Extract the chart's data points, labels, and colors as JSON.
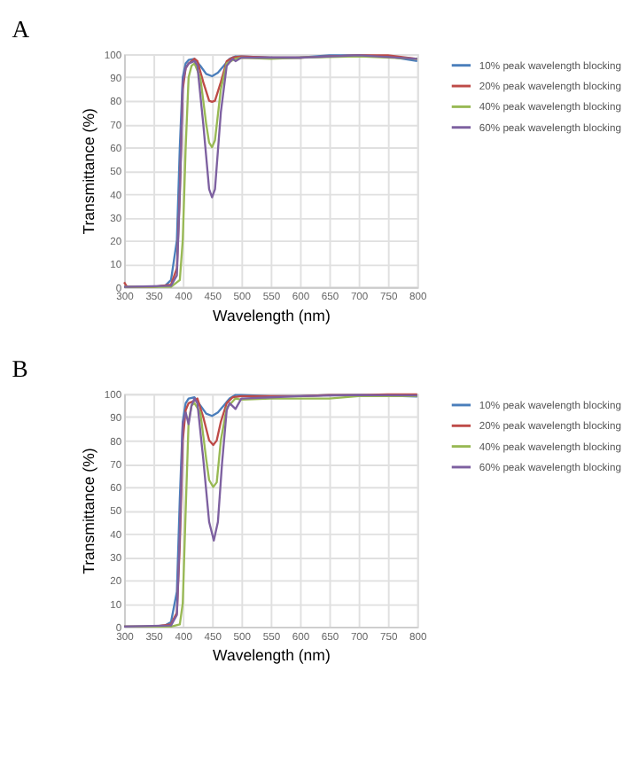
{
  "chart_data": [
    {
      "type": "line",
      "title": "A",
      "xlabel": "Wavelength (nm)",
      "ylabel": "Transmittance (%)",
      "xlim": [
        300,
        800
      ],
      "xticks": [
        300,
        350,
        400,
        450,
        500,
        550,
        600,
        650,
        700,
        750,
        800
      ],
      "ylim": [
        0,
        100
      ],
      "yticks": [
        0,
        10,
        20,
        30,
        40,
        50,
        60,
        70,
        80,
        90,
        100
      ],
      "grid": true,
      "legend": "right",
      "line_style": "solid",
      "series": [
        {
          "name": "10% peak wavelength blocking",
          "color": "#4a7ebb",
          "x": [
            300,
            350,
            370,
            380,
            390,
            395,
            400,
            405,
            410,
            420,
            430,
            440,
            450,
            460,
            470,
            480,
            490,
            500,
            550,
            600,
            650,
            700,
            750,
            800
          ],
          "values": [
            0,
            0,
            0.5,
            3,
            20,
            60,
            90,
            96,
            97.5,
            98,
            95,
            91.5,
            90.5,
            92,
            95,
            98,
            99,
            99,
            98.5,
            98.5,
            99.5,
            99.5,
            99,
            97
          ]
        },
        {
          "name": "20% peak wavelength blocking",
          "color": "#be4b48",
          "x": [
            300,
            305,
            350,
            380,
            390,
            395,
            400,
            405,
            410,
            420,
            425,
            435,
            445,
            450,
            455,
            465,
            475,
            485,
            500,
            550,
            600,
            650,
            700,
            750,
            800
          ],
          "values": [
            2,
            0,
            0,
            1,
            8,
            40,
            85,
            94,
            96,
            98,
            97,
            88,
            80,
            79.5,
            80,
            88,
            97,
            98.5,
            99,
            98.5,
            98.5,
            99,
            99.5,
            99.5,
            98
          ]
        },
        {
          "name": "40% peak wavelength blocking",
          "color": "#98b954",
          "x": [
            300,
            380,
            395,
            400,
            405,
            410,
            415,
            420,
            430,
            440,
            445,
            450,
            455,
            465,
            475,
            490,
            500,
            550,
            600,
            700,
            800
          ],
          "values": [
            0,
            0,
            3,
            20,
            60,
            90,
            95,
            96,
            90,
            70,
            62,
            60,
            63,
            85,
            96,
            98,
            98.5,
            98,
            98.5,
            99,
            98
          ]
        },
        {
          "name": "60% peak wavelength blocking",
          "color": "#7d60a0",
          "x": [
            300,
            380,
            390,
            395,
            400,
            405,
            410,
            420,
            425,
            435,
            445,
            450,
            455,
            465,
            475,
            485,
            490,
            500,
            550,
            600,
            700,
            800
          ],
          "values": [
            0,
            0.5,
            5,
            40,
            88,
            94,
            96,
            97,
            95,
            70,
            42,
            38.5,
            42,
            75,
            95,
            98,
            97,
            98.5,
            98.5,
            98.5,
            99.5,
            98
          ]
        }
      ]
    },
    {
      "type": "line",
      "title": "B",
      "xlabel": "Wavelength (nm)",
      "ylabel": "Transmittance (%)",
      "xlim": [
        300,
        800
      ],
      "xticks": [
        300,
        350,
        400,
        450,
        500,
        550,
        600,
        650,
        700,
        750,
        800
      ],
      "ylim": [
        0,
        100
      ],
      "yticks": [
        0,
        10,
        20,
        30,
        40,
        50,
        60,
        70,
        80,
        90,
        100
      ],
      "grid": true,
      "legend": "right",
      "line_style": "solid",
      "series": [
        {
          "name": "10% peak wavelength blocking",
          "color": "#4a7ebb",
          "x": [
            300,
            350,
            370,
            380,
            390,
            395,
            400,
            405,
            410,
            420,
            430,
            440,
            450,
            460,
            470,
            480,
            490,
            500,
            550,
            600,
            650,
            700,
            750,
            800
          ],
          "values": [
            0,
            0,
            0.5,
            2,
            15,
            55,
            88,
            96,
            98,
            98.5,
            95,
            91.5,
            90.5,
            92,
            95,
            98,
            99.5,
            99.5,
            99,
            99,
            99.5,
            99.5,
            99.2,
            98.8
          ]
        },
        {
          "name": "20% peak wavelength blocking",
          "color": "#be4b48",
          "x": [
            300,
            350,
            380,
            390,
            395,
            400,
            405,
            410,
            420,
            425,
            435,
            445,
            452,
            458,
            465,
            475,
            485,
            500,
            550,
            600,
            650,
            700,
            750,
            800
          ],
          "values": [
            0,
            0,
            1,
            6,
            35,
            80,
            93,
            96,
            97,
            98,
            90,
            80,
            78,
            80,
            88,
            96,
            98.5,
            99,
            99,
            99,
            99.5,
            99.5,
            99.8,
            99.8
          ]
        },
        {
          "name": "40% peak wavelength blocking",
          "color": "#98b954",
          "x": [
            300,
            380,
            395,
            400,
            405,
            410,
            415,
            420,
            430,
            440,
            445,
            452,
            458,
            465,
            475,
            490,
            500,
            550,
            600,
            650,
            700,
            800
          ],
          "values": [
            0,
            0,
            1,
            10,
            50,
            88,
            95,
            96,
            92,
            72,
            63,
            60,
            62,
            80,
            94,
            98,
            97.5,
            98,
            98,
            98,
            99,
            99
          ]
        },
        {
          "name": "60% peak wavelength blocking",
          "color": "#7d60a0",
          "x": [
            300,
            380,
            390,
            395,
            400,
            405,
            410,
            415,
            420,
            425,
            435,
            445,
            453,
            460,
            467,
            475,
            480,
            490,
            500,
            550,
            600,
            700,
            800
          ],
          "values": [
            0,
            0.5,
            5,
            40,
            87,
            92,
            87,
            95,
            98,
            96,
            72,
            45,
            37,
            45,
            70,
            93,
            96,
            93.5,
            98,
            98.5,
            99,
            99.5,
            99.3
          ]
        }
      ]
    }
  ]
}
